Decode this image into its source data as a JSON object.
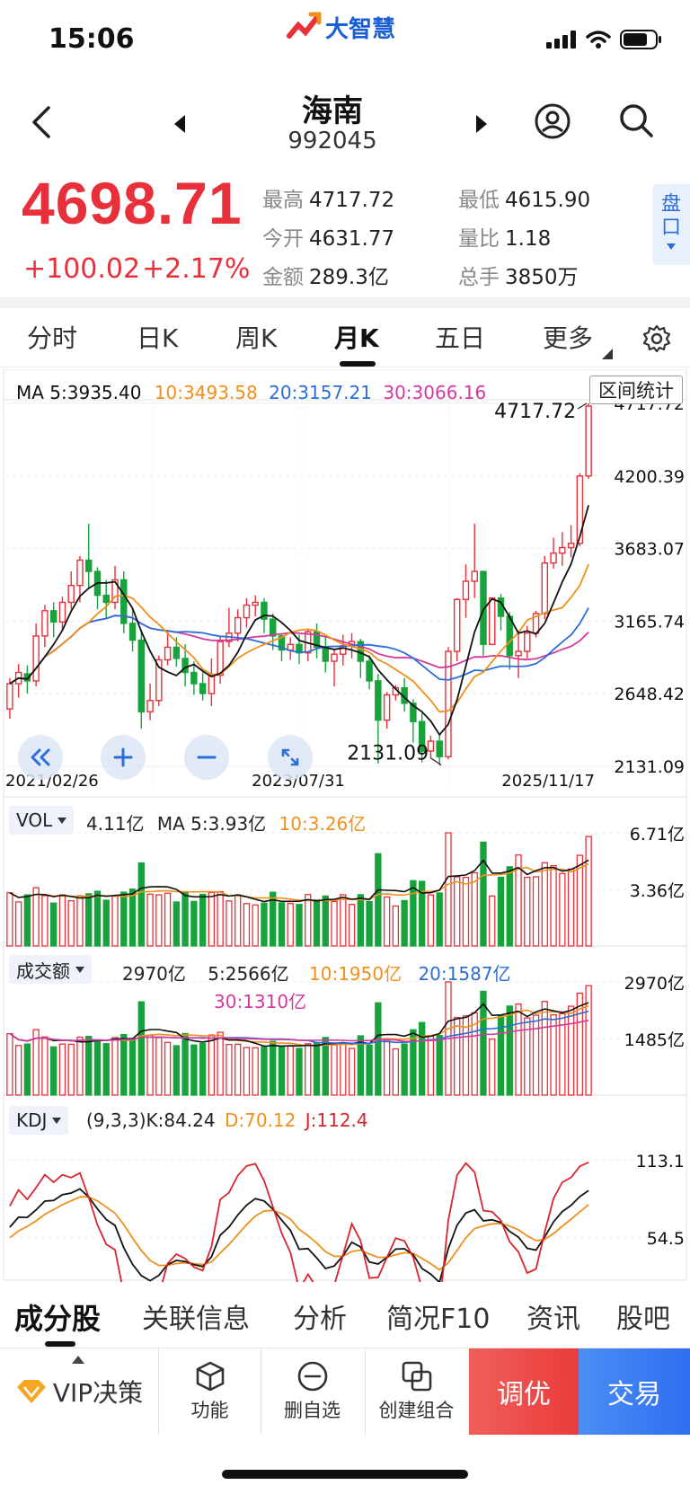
{
  "status_bar": {
    "time": "15:06"
  },
  "app": {
    "logo_text": "大智慧"
  },
  "header": {
    "stock_name": "海南",
    "stock_code": "992045"
  },
  "quote": {
    "last_price": "4698.71",
    "change": "+100.02",
    "change_pct": "+2.17%",
    "stats": [
      {
        "label": "最高",
        "value": "4717.72"
      },
      {
        "label": "最低",
        "value": "4615.90"
      },
      {
        "label": "今开",
        "value": "4631.77"
      },
      {
        "label": "量比",
        "value": "1.18"
      },
      {
        "label": "金额",
        "value": "289.3亿"
      },
      {
        "label": "总手",
        "value": "3850万"
      }
    ],
    "pankou_label_1": "盘",
    "pankou_label_2": "口"
  },
  "period_tabs": [
    {
      "label": "分时"
    },
    {
      "label": "日K"
    },
    {
      "label": "周K"
    },
    {
      "label": "月K",
      "active": true
    },
    {
      "label": "五日"
    },
    {
      "label": "更多"
    }
  ],
  "main_chart": {
    "ma_legend": [
      {
        "text": "MA 5:3935.40",
        "color": "#111111"
      },
      {
        "text": "10:3493.58",
        "color": "#f0901c"
      },
      {
        "text": "20:3157.21",
        "color": "#2a6ed8"
      },
      {
        "text": "30:3066.16",
        "color": "#d43a9e"
      }
    ],
    "range_stats_label": "区间统计",
    "y_ticks": [
      "4717.72",
      "4200.39",
      "3683.07",
      "3165.74",
      "2648.42",
      "2131.09"
    ],
    "x_ticks": [
      "2021/02/26",
      "2023/07/31",
      "2025/11/17"
    ],
    "high_marker": "4717.72",
    "low_marker": "2131.09"
  },
  "volume_panel": {
    "selector_label": "VOL",
    "value": "4.11亿",
    "ma5": "MA 5:3.93亿",
    "ma10": "10:3.26亿",
    "y_ticks": [
      "6.71亿",
      "3.36亿"
    ]
  },
  "amount_panel": {
    "selector_label": "成交额",
    "value": "2970亿",
    "ma5": "5:2566亿",
    "ma10": "10:1950亿",
    "ma20": "20:1587亿",
    "ma30": "30:1310亿",
    "y_ticks": [
      "2970亿",
      "1485亿"
    ]
  },
  "kdj_panel": {
    "selector_label": "KDJ",
    "params_k": "(9,3,3)K:84.24",
    "d": "D:70.12",
    "j": "J:112.4",
    "y_ticks": [
      "113.1",
      "54.5"
    ]
  },
  "bottom_tabs": [
    {
      "label": "成分股",
      "active": true
    },
    {
      "label": "关联信息"
    },
    {
      "label": "分析"
    },
    {
      "label": "简况F10"
    },
    {
      "label": "资讯"
    },
    {
      "label": "股吧"
    }
  ],
  "action_bar": {
    "vip_label": "VIP决策",
    "function_label": "功能",
    "remove_watch_label": "删自选",
    "create_portfolio_label": "创建组合",
    "optimize_label": "调优",
    "trade_label": "交易"
  },
  "colors": {
    "up": "#e8303a",
    "down": "#18a23c",
    "ma5": "#111111",
    "ma10": "#f0901c",
    "ma20": "#2a6ed8",
    "ma30": "#d43a9e",
    "accent": "#2a6ed8"
  },
  "chart_data": {
    "type": "candlestick",
    "period": "monthly",
    "x_range": [
      "2021/02/26",
      "2025/11/17"
    ],
    "ylim": [
      2131.09,
      4717.72
    ],
    "candles": [
      [
        2540,
        2760,
        2720,
        2470
      ],
      [
        2720,
        2860,
        2800,
        2620
      ],
      [
        2790,
        2850,
        2740,
        2650
      ],
      [
        2740,
        3150,
        3060,
        2700
      ],
      [
        3060,
        3280,
        3240,
        2980
      ],
      [
        3240,
        3300,
        3160,
        3050
      ],
      [
        3160,
        3340,
        3300,
        3100
      ],
      [
        3300,
        3520,
        3420,
        3250
      ],
      [
        3420,
        3630,
        3600,
        3300
      ],
      [
        3600,
        3860,
        3520,
        3400
      ],
      [
        3520,
        3550,
        3350,
        3250
      ],
      [
        3350,
        3460,
        3300,
        3190
      ],
      [
        3300,
        3560,
        3460,
        3250
      ],
      [
        3460,
        3520,
        3150,
        3080
      ],
      [
        3150,
        3250,
        3030,
        2950
      ],
      [
        3030,
        3100,
        2520,
        2400
      ],
      [
        2520,
        2720,
        2600,
        2460
      ],
      [
        2600,
        2920,
        2890,
        2560
      ],
      [
        2890,
        3090,
        2980,
        2850
      ],
      [
        2980,
        3050,
        2900,
        2840
      ],
      [
        2900,
        3000,
        2800,
        2700
      ],
      [
        2800,
        2880,
        2720,
        2640
      ],
      [
        2720,
        2800,
        2650,
        2600
      ],
      [
        2650,
        2900,
        2780,
        2560
      ],
      [
        2780,
        3060,
        3020,
        2720
      ],
      [
        3020,
        3260,
        3080,
        2980
      ],
      [
        3080,
        3250,
        3190,
        3020
      ],
      [
        3190,
        3330,
        3280,
        3120
      ],
      [
        3280,
        3350,
        3300,
        3200
      ],
      [
        3300,
        3330,
        3180,
        3080
      ],
      [
        3180,
        3220,
        3060,
        2960
      ],
      [
        3060,
        3080,
        2960,
        2880
      ],
      [
        2960,
        3050,
        3000,
        2890
      ],
      [
        3000,
        3070,
        2940,
        2860
      ],
      [
        2940,
        3110,
        3090,
        2880
      ],
      [
        3090,
        3150,
        2980,
        2900
      ],
      [
        2980,
        3060,
        2880,
        2800
      ],
      [
        2880,
        2960,
        2930,
        2700
      ],
      [
        2930,
        3070,
        2990,
        2850
      ],
      [
        2990,
        3080,
        3020,
        2900
      ],
      [
        3020,
        3040,
        2880,
        2760
      ],
      [
        2880,
        2920,
        2740,
        2680
      ],
      [
        2740,
        2790,
        2460,
        2150
      ],
      [
        2460,
        2660,
        2640,
        2400
      ],
      [
        2640,
        2710,
        2690,
        2600
      ],
      [
        2690,
        2760,
        2580,
        2520
      ],
      [
        2580,
        2610,
        2450,
        2300
      ],
      [
        2450,
        2510,
        2240,
        2160
      ],
      [
        2240,
        2350,
        2310,
        2190
      ],
      [
        2310,
        2350,
        2200,
        2140
      ],
      [
        2200,
        2980,
        2950,
        2180
      ],
      [
        2950,
        3330,
        3320,
        2880
      ],
      [
        3320,
        3570,
        3450,
        3190
      ],
      [
        3450,
        3860,
        3520,
        3330
      ],
      [
        3520,
        3490,
        3000,
        2920
      ],
      [
        3000,
        3100,
        3330,
        3000
      ],
      [
        3330,
        3360,
        3200,
        3100
      ],
      [
        3200,
        3230,
        2920,
        2820
      ],
      [
        2920,
        3100,
        2950,
        2760
      ],
      [
        2950,
        3130,
        3080,
        2900
      ],
      [
        3080,
        3240,
        3220,
        3050
      ],
      [
        3220,
        3630,
        3580,
        3180
      ],
      [
        3580,
        3760,
        3650,
        3540
      ],
      [
        3650,
        3800,
        3690,
        3560
      ],
      [
        3690,
        3850,
        3720,
        3620
      ],
      [
        3720,
        4220,
        4200,
        3700
      ],
      [
        4200,
        4717.72,
        4698.71,
        4180
      ]
    ]
  }
}
